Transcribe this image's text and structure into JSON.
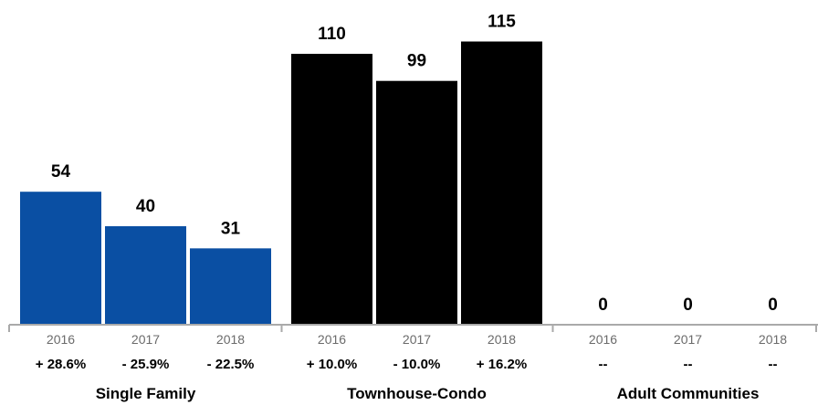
{
  "chart_data": {
    "type": "bar",
    "ylim": [
      0,
      125
    ],
    "grid": false,
    "groups": [
      {
        "name": "Single Family",
        "color": "#0a4fa3",
        "bars": [
          {
            "year": "2016",
            "value": 54,
            "label": "54",
            "change": "+ 28.6%"
          },
          {
            "year": "2017",
            "value": 40,
            "label": "40",
            "change": "- 25.9%"
          },
          {
            "year": "2018",
            "value": 31,
            "label": "31",
            "change": "- 22.5%"
          }
        ]
      },
      {
        "name": "Townhouse-Condo",
        "color": "#000000",
        "bars": [
          {
            "year": "2016",
            "value": 110,
            "label": "110",
            "change": "+ 10.0%"
          },
          {
            "year": "2017",
            "value": 99,
            "label": "99",
            "change": "- 10.0%"
          },
          {
            "year": "2018",
            "value": 115,
            "label": "115",
            "change": "+ 16.2%"
          }
        ]
      },
      {
        "name": "Adult Communities",
        "color": "#2b6cb0",
        "bars": [
          {
            "year": "2016",
            "value": 0,
            "label": "0",
            "change": "--"
          },
          {
            "year": "2017",
            "value": 0,
            "label": "0",
            "change": "--"
          },
          {
            "year": "2018",
            "value": 0,
            "label": "0",
            "change": "--"
          }
        ]
      }
    ]
  }
}
